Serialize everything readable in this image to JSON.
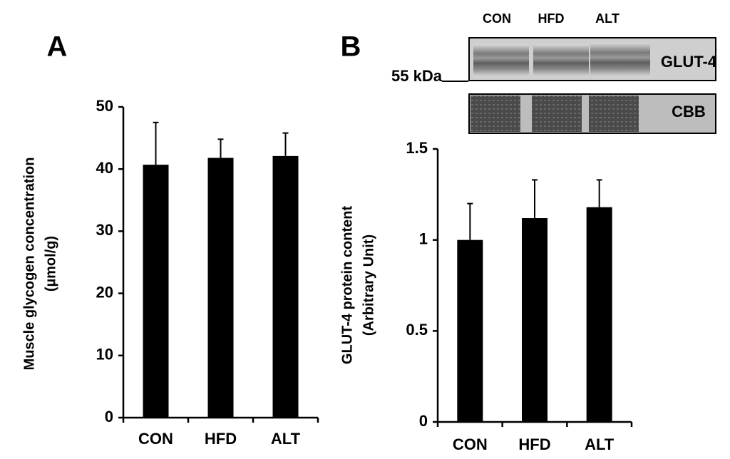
{
  "chart_data": [
    {
      "type": "bar",
      "panel": "A",
      "y_label_lines": [
        "Muscle glycogen concentration",
        "(µmol/g)"
      ],
      "categories": [
        "CON",
        "HFD",
        "ALT"
      ],
      "series": [
        {
          "color": "#000000",
          "values": [
            40.7,
            41.8,
            42.1
          ],
          "errors": [
            6.8,
            3.0,
            3.7
          ]
        }
      ],
      "ylim": [
        0,
        50
      ],
      "yticks": [
        0,
        10,
        20,
        30,
        40,
        50
      ]
    },
    {
      "type": "bar",
      "panel": "B",
      "y_label_lines": [
        "GLUT-4 protein content",
        "(Arbitrary Unit)"
      ],
      "categories": [
        "CON",
        "HFD",
        "ALT"
      ],
      "series": [
        {
          "color": "#000000",
          "values": [
            1.0,
            1.12,
            1.18
          ],
          "errors": [
            0.2,
            0.21,
            0.15
          ]
        }
      ],
      "ylim": [
        0,
        1.5
      ],
      "yticks": [
        0,
        0.5,
        1,
        1.5
      ]
    }
  ],
  "blot": {
    "lanes": [
      "CON",
      "HFD",
      "ALT"
    ],
    "bands": [
      "GLUT-4",
      "CBB"
    ],
    "marker": "55 kDa"
  }
}
